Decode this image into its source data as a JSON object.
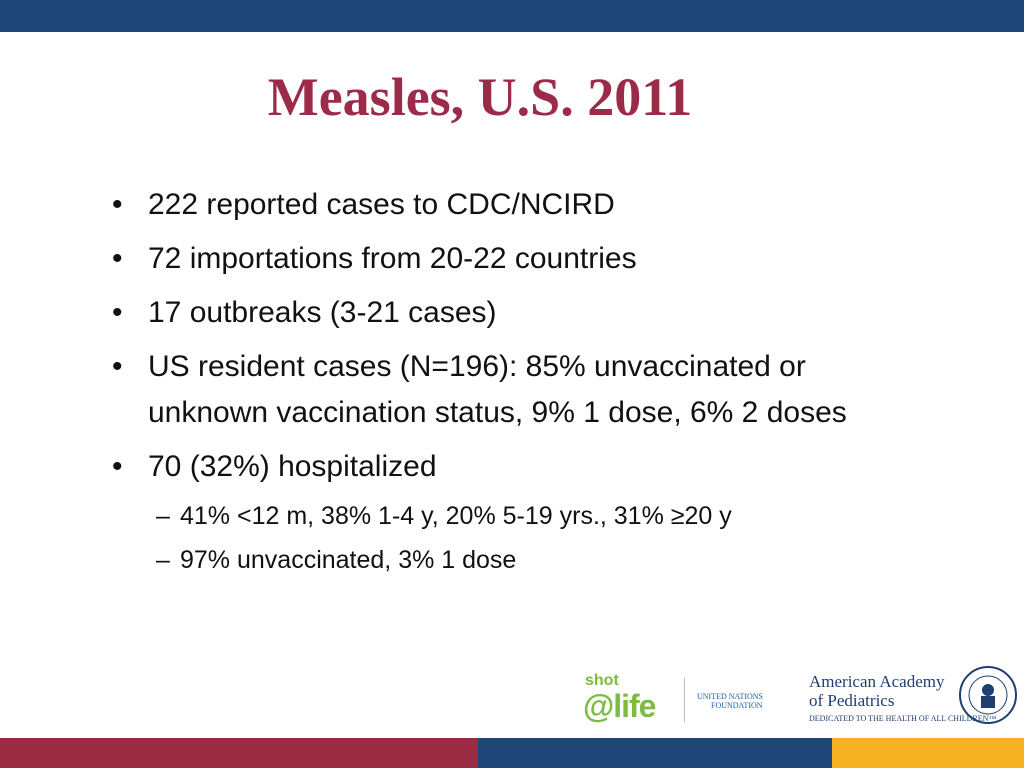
{
  "title": "Measles, U.S. 2011",
  "bullets": [
    {
      "text": "222 reported cases to CDC/NCIRD"
    },
    {
      "text": "72 importations from 20-22 countries"
    },
    {
      "text": "17 outbreaks (3-21 cases)"
    },
    {
      "text": "US resident cases (N=196): 85% unvaccinated or unknown vaccination status, 9% 1 dose, 6% 2 doses"
    },
    {
      "text": "70 (32%) hospitalized",
      "sub": [
        "41% <12 m, 38% 1-4 y, 20% 5-19 yrs., 31% ≥20 y",
        "97% unvaccinated, 3% 1 dose"
      ]
    }
  ],
  "logos": {
    "shot_life": {
      "top": "shot",
      "main": "@life"
    },
    "un_foundation": [
      "UNITED NATIONS",
      "FOUNDATION"
    ],
    "aap": {
      "name_lines": [
        "American Academy",
        "of Pediatrics"
      ],
      "tagline": "DEDICATED TO THE HEALTH OF ALL CHILDREN™"
    }
  }
}
